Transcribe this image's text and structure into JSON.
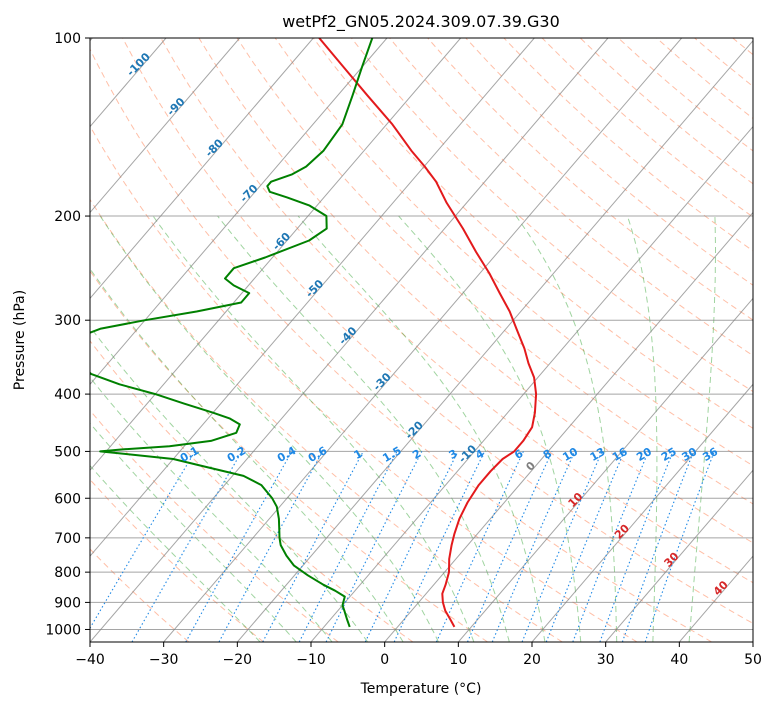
{
  "chart_data": {
    "type": "line",
    "subtype": "skew-t log-p diagram",
    "title": "wetPf2_GN05.2024.309.07.39.G30",
    "xlabel": "Temperature (°C)",
    "ylabel": "Pressure (hPa)",
    "xlim": [
      -40,
      50
    ],
    "ylim": [
      1050,
      100
    ],
    "yscale": "log",
    "grid": true,
    "x_ticks": [
      "−40",
      "−30",
      "−20",
      "−10",
      "0",
      "10",
      "20",
      "30",
      "40",
      "50"
    ],
    "x_tick_values": [
      -40,
      -30,
      -20,
      -10,
      0,
      10,
      20,
      30,
      40,
      50
    ],
    "y_ticks": [
      "100",
      "200",
      "300",
      "400",
      "500",
      "600",
      "700",
      "800",
      "900",
      "1000"
    ],
    "y_tick_values": [
      100,
      200,
      300,
      400,
      500,
      600,
      700,
      800,
      900,
      1000
    ],
    "colors": {
      "temperature": "#e31a1c",
      "dewpoint": "#008000",
      "isotherm": "#7f7f7f",
      "dry_adiabat": "#ff7f50",
      "moist_adiabat": "#2ca02c",
      "mixing_ratio": "#1e88e5",
      "skew_label": "#1f77b4",
      "hot_label": "#d62728"
    },
    "series": [
      {
        "name": "temperature",
        "pressure": [
          990,
          960,
          930,
          900,
          870,
          840,
          800,
          760,
          720,
          690,
          650,
          610,
          570,
          540,
          515,
          500,
          480,
          455,
          430,
          400,
          375,
          355,
          335,
          310,
          290,
          270,
          250,
          230,
          210,
          190,
          175,
          165,
          155,
          140,
          125,
          112,
          100
        ],
        "temperature": [
          7.7,
          6.2,
          4.6,
          3.3,
          2.2,
          1.6,
          0.6,
          -0.9,
          -2.2,
          -3.1,
          -4.2,
          -5.0,
          -5.5,
          -5.5,
          -5.3,
          -4.6,
          -4.6,
          -5.0,
          -6.3,
          -8.3,
          -10.5,
          -12.9,
          -15.2,
          -18.6,
          -21.5,
          -25.0,
          -28.7,
          -33.0,
          -37.5,
          -42.7,
          -46.6,
          -49.9,
          -53.6,
          -59.2,
          -66.0,
          -72.5,
          -79.2
        ]
      },
      {
        "name": "dewpoint",
        "pressure": [
          990,
          960,
          930,
          910,
          880,
          860,
          840,
          810,
          780,
          750,
          720,
          700,
          680,
          650,
          620,
          600,
          570,
          550,
          530,
          515,
          505,
          500,
          496,
          490,
          480,
          465,
          450,
          440,
          430,
          415,
          400,
          385,
          370,
          350,
          335,
          320,
          310,
          300,
          290,
          280,
          270,
          262,
          255,
          245,
          235,
          220,
          210,
          200,
          192,
          186,
          182,
          178,
          175,
          170,
          165,
          155,
          140,
          125,
          112,
          100
        ],
        "temperature": [
          -6.5,
          -7.8,
          -9.1,
          -10.0,
          -10.7,
          -12.7,
          -15.0,
          -18.2,
          -21.2,
          -23.4,
          -25.4,
          -26.4,
          -27.3,
          -28.7,
          -30.4,
          -32.0,
          -35.0,
          -38.5,
          -45.0,
          -50.0,
          -57.0,
          -60.8,
          -58.0,
          -52.0,
          -47.0,
          -44.5,
          -45.0,
          -47.0,
          -50.0,
          -55.0,
          -60.0,
          -66.0,
          -71.0,
          -75.0,
          -77.0,
          -77.0,
          -75.0,
          -70.0,
          -64.0,
          -59.0,
          -59.0,
          -62.0,
          -64.0,
          -64.0,
          -61.0,
          -57.0,
          -56.0,
          -57.5,
          -61.0,
          -65.0,
          -68.0,
          -69.0,
          -69.0,
          -67.0,
          -66.0,
          -65.5,
          -66.0,
          -68.0,
          -70.0,
          -72.0
        ]
      }
    ],
    "skew_labels": [
      "-100",
      "-90",
      "-80",
      "-70",
      "-60",
      "-50",
      "-40",
      "-30",
      "-20",
      "-10"
    ],
    "hot_labels": [
      "0",
      "10",
      "20",
      "30",
      "40"
    ],
    "mixing_ratio_labels": [
      "0.1",
      "0.2",
      "0.4",
      "0.6",
      "1",
      "1.5",
      "2",
      "3",
      "4",
      "6",
      "8",
      "10",
      "13",
      "16",
      "20",
      "25",
      "30",
      "36"
    ]
  }
}
